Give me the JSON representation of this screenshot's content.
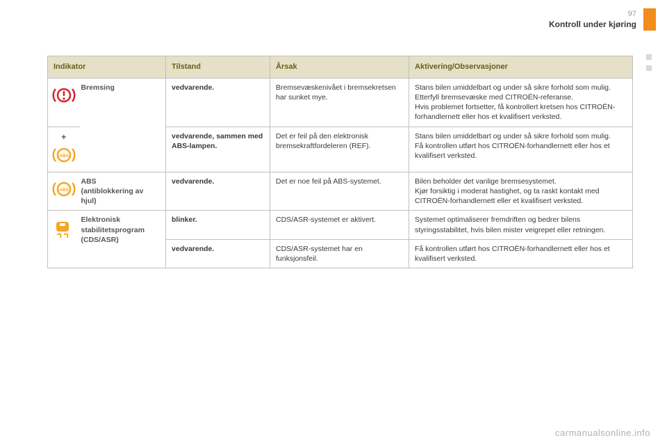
{
  "page": {
    "number": "97",
    "section": "Kontroll under kjøring",
    "footer": "carmanualsonline.info"
  },
  "table": {
    "headers": {
      "indikator": "Indikator",
      "tilstand": "Tilstand",
      "arsak": "Årsak",
      "aktivering": "Aktivering/Observasjoner"
    },
    "rows": [
      {
        "icon": "brake-red",
        "label": "Bremsing",
        "tilstand": "vedvarende.",
        "arsak": "Bremsevæskenivået i bremsekretsen har sunket mye.",
        "aktivering": "Stans bilen umiddelbart og under så sikre forhold som mulig.\nEtterfyll bremsevæske med CITROËN-referanse.\nHvis problemet fortsetter, få kontrollert kretsen hos CITROËN-forhandlernett eller hos et kvalifisert verksted."
      },
      {
        "icon": "abs-plus",
        "label": "",
        "tilstand": "vedvarende, sammen med ABS-lampen.",
        "arsak": "Det er feil på den elektronisk bremsekraftfordeleren (REF).",
        "aktivering": "Stans bilen umiddelbart og under så sikre forhold som mulig.\nFå kontrollen utført hos CITROËN-forhandlernett eller hos et kvalifisert verksted."
      },
      {
        "icon": "abs",
        "label": "ABS\n(antiblokkering av hjul)",
        "tilstand": "vedvarende.",
        "arsak": "Det er noe feil på ABS-systemet.",
        "aktivering": "Bilen beholder det vanlige bremsesystemet.\nKjør forsiktig i moderat hastighet, og ta raskt kontakt med CITROËN-forhandlernett eller et kvalifisert verksted."
      },
      {
        "icon": "esp",
        "label": "Elektronisk stabilitetsprogram (CDS/ASR)",
        "tilstand": "blinker.",
        "arsak": "CDS/ASR-systemet er aktivert.",
        "aktivering": "Systemet optimaliserer fremdriften og bedrer bilens styringsstabilitet, hvis bilen mister veigrepet eller retningen."
      },
      {
        "icon": "",
        "label": "",
        "tilstand": "vedvarende.",
        "arsak": "CDS/ASR-systemet har en funksjonsfeil.",
        "aktivering": "Få kontrollen utført hos CITROËN-forhandlernett eller hos et kvalifisert verksted."
      }
    ]
  },
  "colors": {
    "header_bg": "#e6e0c8",
    "header_text": "#6a5d1a",
    "border": "#bfbfbf",
    "orange": "#f28c1a",
    "red": "#d8222a",
    "amber": "#f5a623"
  }
}
